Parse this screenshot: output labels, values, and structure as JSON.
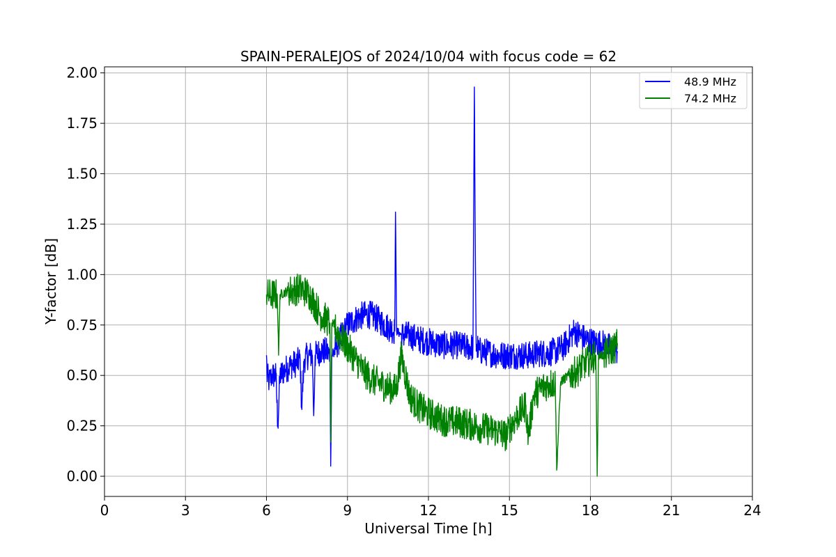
{
  "chart_data": {
    "type": "line",
    "title": "SPAIN-PERALEJOS of 2024/10/04 with focus code = 62",
    "xlabel": "Universal Time [h]",
    "ylabel": "Y-factor [dB]",
    "xlim": [
      0,
      24
    ],
    "ylim": [
      -0.1,
      2.03
    ],
    "xticks": [
      0,
      3,
      6,
      9,
      12,
      15,
      18,
      21,
      24
    ],
    "xtick_labels": [
      "0",
      "3",
      "6",
      "9",
      "12",
      "15",
      "18",
      "21",
      "24"
    ],
    "yticks": [
      0.0,
      0.25,
      0.5,
      0.75,
      1.0,
      1.25,
      1.5,
      1.75,
      2.0
    ],
    "ytick_labels": [
      "0.00",
      "0.25",
      "0.50",
      "0.75",
      "1.00",
      "1.25",
      "1.50",
      "1.75",
      "2.00"
    ],
    "grid": true,
    "legend_position": "top-right",
    "series": [
      {
        "name": "48.9 MHz",
        "color": "#0000ff",
        "noise": 0.07,
        "x": [
          6.0,
          6.02,
          6.1,
          6.2,
          6.35,
          6.42,
          6.5,
          6.7,
          6.9,
          7.1,
          7.25,
          7.3,
          7.4,
          7.55,
          7.7,
          7.75,
          7.8,
          8.0,
          8.2,
          8.35,
          8.38,
          8.42,
          8.45,
          8.6,
          8.8,
          9.0,
          9.3,
          9.6,
          9.9,
          10.2,
          10.5,
          10.75,
          10.78,
          10.82,
          11.0,
          11.3,
          11.6,
          11.9,
          12.2,
          12.5,
          12.8,
          13.1,
          13.4,
          13.65,
          13.7,
          13.74,
          13.77,
          13.8,
          13.85,
          14.0,
          14.3,
          14.6,
          14.9,
          15.2,
          15.5,
          15.8,
          16.1,
          16.4,
          16.7,
          17.0,
          17.2,
          17.4,
          17.6,
          17.8,
          18.0,
          18.2,
          18.4,
          18.6,
          18.8,
          19.0
        ],
        "y": [
          0.6,
          0.5,
          0.47,
          0.5,
          0.5,
          0.25,
          0.5,
          0.53,
          0.55,
          0.56,
          0.58,
          0.34,
          0.58,
          0.6,
          0.6,
          0.3,
          0.6,
          0.62,
          0.62,
          0.6,
          0.05,
          0.6,
          0.6,
          0.65,
          0.7,
          0.75,
          0.78,
          0.8,
          0.8,
          0.77,
          0.74,
          0.72,
          1.31,
          0.72,
          0.7,
          0.7,
          0.68,
          0.67,
          0.66,
          0.65,
          0.65,
          0.65,
          0.64,
          0.64,
          1.93,
          1.06,
          0.62,
          0.65,
          0.62,
          0.62,
          0.61,
          0.6,
          0.6,
          0.6,
          0.6,
          0.6,
          0.61,
          0.61,
          0.62,
          0.64,
          0.68,
          0.72,
          0.7,
          0.68,
          0.67,
          0.66,
          0.66,
          0.65,
          0.63,
          0.62
        ]
      },
      {
        "name": "74.2 MHz",
        "color": "#008000",
        "noise": 0.08,
        "x": [
          6.0,
          6.02,
          6.2,
          6.4,
          6.45,
          6.5,
          6.8,
          7.0,
          7.2,
          7.4,
          7.6,
          7.8,
          8.0,
          8.2,
          8.35,
          8.38,
          8.42,
          8.5,
          8.7,
          9.0,
          9.3,
          9.6,
          9.9,
          10.2,
          10.5,
          10.8,
          11.0,
          11.3,
          11.6,
          11.9,
          12.2,
          12.5,
          12.8,
          13.1,
          13.4,
          13.7,
          14.0,
          14.3,
          14.6,
          14.9,
          15.0,
          15.3,
          15.6,
          15.7,
          15.9,
          16.2,
          16.5,
          16.7,
          16.75,
          16.9,
          17.2,
          17.5,
          17.8,
          18.0,
          18.2,
          18.25,
          18.3,
          18.5,
          18.7,
          18.9,
          19.0
        ],
        "y": [
          0.9,
          0.9,
          0.9,
          0.9,
          0.6,
          0.9,
          0.92,
          0.92,
          0.93,
          0.92,
          0.9,
          0.85,
          0.8,
          0.78,
          0.76,
          0.17,
          0.76,
          0.74,
          0.7,
          0.64,
          0.58,
          0.52,
          0.48,
          0.46,
          0.44,
          0.43,
          0.6,
          0.4,
          0.35,
          0.32,
          0.3,
          0.28,
          0.27,
          0.27,
          0.26,
          0.25,
          0.24,
          0.23,
          0.22,
          0.2,
          0.24,
          0.3,
          0.35,
          0.2,
          0.4,
          0.44,
          0.46,
          0.46,
          0.03,
          0.47,
          0.5,
          0.52,
          0.56,
          0.58,
          0.6,
          0.0,
          0.6,
          0.6,
          0.62,
          0.64,
          0.66
        ]
      }
    ]
  }
}
